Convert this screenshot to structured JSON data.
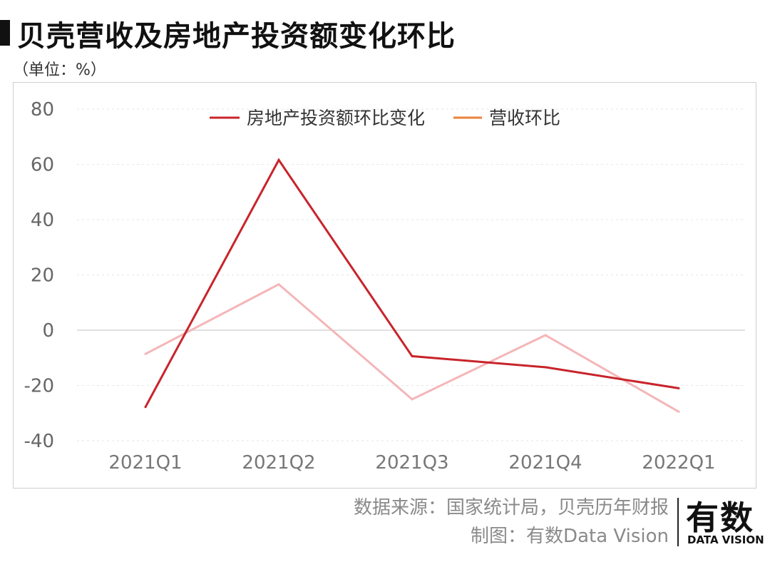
{
  "title": "贝壳营收及房地产投资额变化环比",
  "unit": "（单位：%）",
  "footer": {
    "source": "数据来源：国家统计局，贝壳历年财报",
    "credit": "制图：有数Data Vision"
  },
  "logo": {
    "cn": "有数",
    "en": "DATA VISION"
  },
  "chart_data": {
    "type": "line",
    "categories": [
      "2021Q1",
      "2021Q2",
      "2021Q3",
      "2021Q4",
      "2022Q1"
    ],
    "ylim": [
      -40,
      80
    ],
    "yticks": [
      80,
      60,
      40,
      20,
      0,
      -20,
      -40
    ],
    "grid": true,
    "legend_position": "top-center",
    "series": [
      {
        "name": "房地产投资额环比变化",
        "color": "#c8242b",
        "values": [
          -27.8,
          61.6,
          -9.4,
          -13.4,
          -21
        ]
      },
      {
        "name": "营收环比",
        "color": "#f4b6b8",
        "legend_color": "#e8823a",
        "values": [
          -8.6,
          16.6,
          -25,
          -1.8,
          -29.5
        ]
      }
    ]
  }
}
